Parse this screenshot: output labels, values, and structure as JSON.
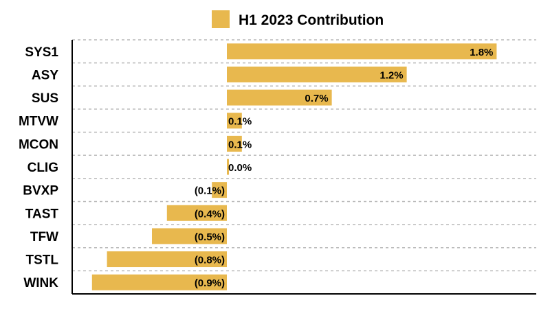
{
  "chart_data": {
    "type": "bar",
    "orientation": "horizontal",
    "categories": [
      "SYS1",
      "ASY",
      "SUS",
      "MTVW",
      "MCON",
      "CLIG",
      "BVXP",
      "TAST",
      "TFW",
      "TSTL",
      "WINK"
    ],
    "series": [
      {
        "name": "H1 2023 Contribution",
        "values": [
          1.8,
          1.2,
          0.7,
          0.1,
          0.1,
          0.0,
          -0.1,
          -0.4,
          -0.5,
          -0.8,
          -0.9
        ],
        "labels": [
          "1.8%",
          "1.2%",
          "0.7%",
          "0.1%",
          "0.1%",
          "0.0%",
          "(0.1%)",
          "(0.4%)",
          "(0.5%)",
          "(0.8%)",
          "(0.9%)"
        ],
        "color": "#E8B84E"
      }
    ],
    "xlim": [
      -1.0,
      2.0
    ],
    "grid": "horizontal-dashed",
    "legend_position": "top-center"
  }
}
